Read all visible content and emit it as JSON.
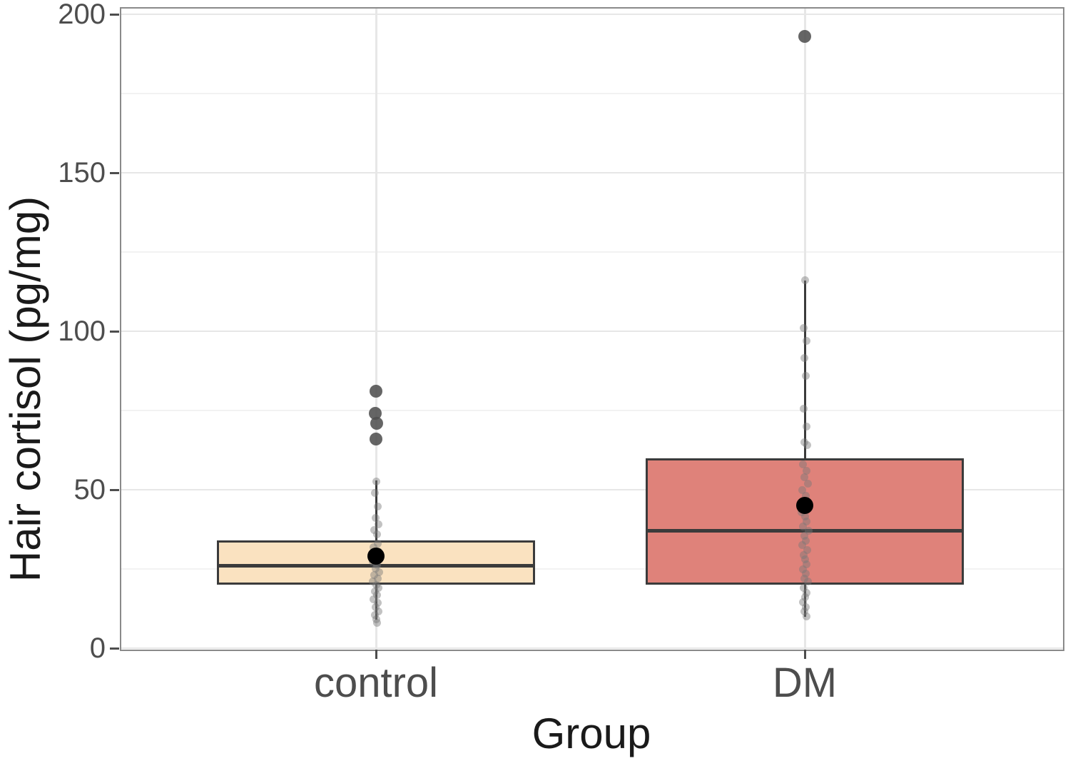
{
  "figure": {
    "background": "#ffffff"
  },
  "chart_data": {
    "type": "boxplot",
    "title": "",
    "xlabel": "Group",
    "ylabel": "Hair cortisol (pg/mg)",
    "ylim": [
      0,
      200
    ],
    "y_major_ticks": [
      0,
      50,
      100,
      150,
      200
    ],
    "y_major_tick_labels": [
      "0",
      "50",
      "100",
      "150",
      "200"
    ],
    "y_minor_ticks": [
      25,
      75,
      125,
      175
    ],
    "grid": "horizontal major+minor, vertical major at group centers",
    "legend_position": "none",
    "groups": [
      {
        "label": "control",
        "fill": "#fae2c0",
        "stats": {
          "q1": 20,
          "median": 26,
          "q3": 34,
          "whisker_low": 9,
          "whisker_high": 53,
          "mean": 29
        },
        "outliers": [
          [
            81,
            0
          ],
          [
            74,
            -1
          ],
          [
            71,
            1
          ],
          [
            66,
            0
          ]
        ],
        "points": [
          [
            52.5,
            0
          ],
          [
            49,
            -2
          ],
          [
            44.6,
            2
          ],
          [
            41,
            -1
          ],
          [
            39,
            3
          ],
          [
            37.2,
            -3
          ],
          [
            36,
            1
          ],
          [
            33,
            2
          ],
          [
            31.8,
            -4
          ],
          [
            30.6,
            3
          ],
          [
            29.5,
            -2
          ],
          [
            28.4,
            5
          ],
          [
            27.3,
            -5
          ],
          [
            26.2,
            1
          ],
          [
            25.1,
            -1
          ],
          [
            24,
            4
          ],
          [
            23,
            -3
          ],
          [
            22,
            2
          ],
          [
            21,
            -5
          ],
          [
            20,
            0
          ],
          [
            19,
            3
          ],
          [
            18,
            -2
          ],
          [
            16.8,
            1
          ],
          [
            15.5,
            -4
          ],
          [
            14.2,
            2
          ],
          [
            12.9,
            -1
          ],
          [
            11.7,
            3
          ],
          [
            10.4,
            -2
          ],
          [
            9.2,
            0
          ],
          [
            8,
            1
          ]
        ]
      },
      {
        "label": "DM",
        "fill": "#df827a",
        "stats": {
          "q1": 20,
          "median": 37,
          "q3": 60,
          "whisker_low": 10,
          "whisker_high": 116,
          "mean": 45
        },
        "outliers": [
          [
            193,
            0
          ]
        ],
        "points": [
          [
            116,
            0
          ],
          [
            101,
            -2
          ],
          [
            97,
            2
          ],
          [
            91.5,
            -1
          ],
          [
            86,
            1
          ],
          [
            75.5,
            -2
          ],
          [
            70,
            2
          ],
          [
            65,
            -1
          ],
          [
            64,
            3
          ],
          [
            58,
            -3
          ],
          [
            56,
            2
          ],
          [
            54,
            -1
          ],
          [
            52,
            4
          ],
          [
            50,
            -4
          ],
          [
            48,
            1
          ],
          [
            46,
            -2
          ],
          [
            44.5,
            3
          ],
          [
            43,
            -5
          ],
          [
            41.5,
            0
          ],
          [
            40,
            2
          ],
          [
            38.5,
            -3
          ],
          [
            37,
            5
          ],
          [
            35.5,
            -1
          ],
          [
            34,
            1
          ],
          [
            32.5,
            -4
          ],
          [
            31,
            3
          ],
          [
            29.5,
            -2
          ],
          [
            28,
            0
          ],
          [
            26.5,
            2
          ],
          [
            25,
            -3
          ],
          [
            23.5,
            1
          ],
          [
            22,
            -1
          ],
          [
            21,
            4
          ],
          [
            19,
            -2
          ],
          [
            17.5,
            2
          ],
          [
            16,
            0
          ],
          [
            14.5,
            -3
          ],
          [
            13,
            1
          ],
          [
            11.5,
            -1
          ],
          [
            10,
            2
          ]
        ]
      }
    ],
    "style": {
      "box_border_color": "#3b3b3b",
      "median_color": "#3b3b3b",
      "whisker_color": "#3b3b3b",
      "mean_point_color": "#000000",
      "jitter_point_color": "rgba(120,120,120,0.45)",
      "outlier_point_color": "rgba(80,80,80,0.88)",
      "panel_border_color": "#8a8a8a",
      "grid_major_color": "#e7e7e7",
      "grid_minor_color": "#f2f2f2",
      "tick_color": "#4d4d4d",
      "tick_label_color": "#4d4d4d",
      "axis_title_color": "#1a1a1a"
    }
  }
}
